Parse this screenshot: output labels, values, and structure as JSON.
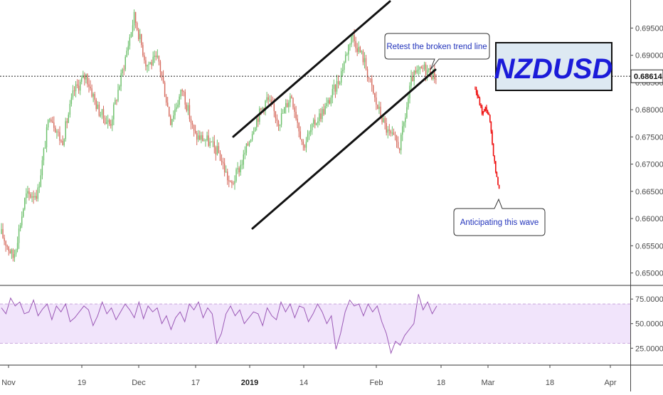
{
  "chart_data": [
    {
      "type": "candlestick",
      "title": "NZDUSD",
      "y_axis": {
        "ticks": [
          "0.69500",
          "0.69000",
          "0.68500",
          "0.68000",
          "0.67500",
          "0.67000",
          "0.66500",
          "0.66000",
          "0.65500",
          "0.65000"
        ],
        "ylim": [
          0.6485,
          0.6995
        ]
      },
      "x_axis": {
        "ticks": [
          "Nov",
          "19",
          "Dec",
          "17",
          "2019",
          "14",
          "Feb",
          "18",
          "Mar",
          "18",
          "Apr"
        ],
        "bold_tick": "2019"
      },
      "current_price": {
        "label": "0.68614",
        "value": 0.68614
      },
      "price_path": [
        [
          0,
          0.6572
        ],
        [
          1,
          0.6528
        ],
        [
          2,
          0.6641
        ],
        [
          3,
          0.6647
        ],
        [
          4,
          0.6795
        ],
        [
          5,
          0.6738
        ],
        [
          6,
          0.6834
        ],
        [
          7,
          0.6863
        ],
        [
          8,
          0.68
        ],
        [
          9,
          0.6772
        ],
        [
          10,
          0.6868
        ],
        [
          11,
          0.6972
        ],
        [
          12,
          0.6883
        ],
        [
          13,
          0.6892
        ],
        [
          14,
          0.678
        ],
        [
          15,
          0.6838
        ],
        [
          16,
          0.6752
        ],
        [
          17,
          0.6744
        ],
        [
          18,
          0.672
        ],
        [
          19,
          0.6658
        ],
        [
          20,
          0.6708
        ],
        [
          21,
          0.6777
        ],
        [
          22,
          0.682
        ],
        [
          23,
          0.6778
        ],
        [
          24,
          0.6829
        ],
        [
          25,
          0.6733
        ],
        [
          26,
          0.6778
        ],
        [
          27,
          0.6809
        ],
        [
          28,
          0.6858
        ],
        [
          29,
          0.6938
        ],
        [
          30,
          0.6893
        ],
        [
          31,
          0.6813
        ],
        [
          32,
          0.6758
        ],
        [
          33,
          0.6732
        ],
        [
          34,
          0.6858
        ],
        [
          35,
          0.6876
        ],
        [
          36,
          0.6862
        ]
      ],
      "projection": [
        [
          0,
          0.6838
        ],
        [
          1,
          0.6818
        ],
        [
          2,
          0.6793
        ],
        [
          3,
          0.6804
        ],
        [
          4,
          0.6785
        ],
        [
          5,
          0.6725
        ],
        [
          6,
          0.6675
        ],
        [
          7,
          0.665
        ]
      ],
      "channel": {
        "upper_label": "",
        "lower_label": ""
      },
      "annotations": [
        {
          "text": "Retest the broken trend line"
        },
        {
          "text": "Anticipating this wave"
        }
      ],
      "colors": {
        "up": "#6abf69",
        "down": "#d66a5d",
        "projection": "#ee1111",
        "title": "#1b1bd9",
        "title_box": "#dde9f2",
        "annotation_text": "#2233bb"
      }
    },
    {
      "type": "line",
      "indicator": "RSI",
      "y_axis": {
        "ticks": [
          "75.0000",
          "50.0000",
          "25.0000"
        ],
        "ylim": [
          10,
          86
        ]
      },
      "band": [
        30,
        70
      ],
      "values": [
        66,
        60,
        76,
        68,
        72,
        60,
        62,
        74,
        58,
        65,
        70,
        54,
        68,
        62,
        70,
        52,
        56,
        62,
        68,
        64,
        48,
        58,
        72,
        60,
        66,
        54,
        62,
        70,
        64,
        56,
        72,
        55,
        68,
        62,
        66,
        50,
        58,
        44,
        56,
        62,
        52,
        70,
        64,
        72,
        56,
        66,
        60,
        30,
        40,
        60,
        68,
        58,
        64,
        50,
        56,
        62,
        60,
        48,
        66,
        58,
        54,
        72,
        62,
        70,
        56,
        68,
        66,
        52,
        60,
        70,
        62,
        50,
        58,
        24,
        40,
        62,
        74,
        68,
        70,
        58,
        70,
        62,
        68,
        52,
        40,
        20,
        32,
        28,
        38,
        44,
        50,
        80,
        64,
        72,
        60,
        68
      ],
      "colors": {
        "line": "#9b59b6",
        "band_fill": "#f1e4fb",
        "band_border": "#c9a7dd"
      }
    }
  ]
}
